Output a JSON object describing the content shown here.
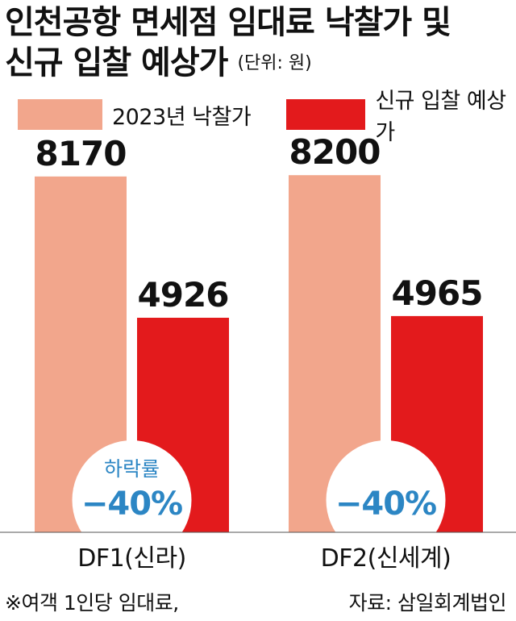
{
  "title_line1": "인천공항 면세점 임대료 낙찰가 및",
  "title_line2": "신규 입찰 예상가",
  "unit": "(단위: 원)",
  "footnote_left": "※여객 1인당 임대료,",
  "footnote_right": "자료: 삼일회계법인",
  "colors": {
    "series_2023": "#F2A68C",
    "series_new": "#E31A1C",
    "decline": "#2C86C4"
  },
  "chart_data": {
    "type": "bar",
    "categories": [
      "DF1(신라)",
      "DF2(신세계)"
    ],
    "series": [
      {
        "name": "2023년 낙찰가",
        "values": [
          8170,
          8200
        ]
      },
      {
        "name": "신규 입찰 예상가",
        "values": [
          4926,
          4965
        ]
      }
    ],
    "annotations": [
      {
        "label": "하락률",
        "value": "−40%"
      },
      {
        "label": "",
        "value": "−40%"
      }
    ],
    "ylim": [
      0,
      9500
    ],
    "legend": "top"
  }
}
